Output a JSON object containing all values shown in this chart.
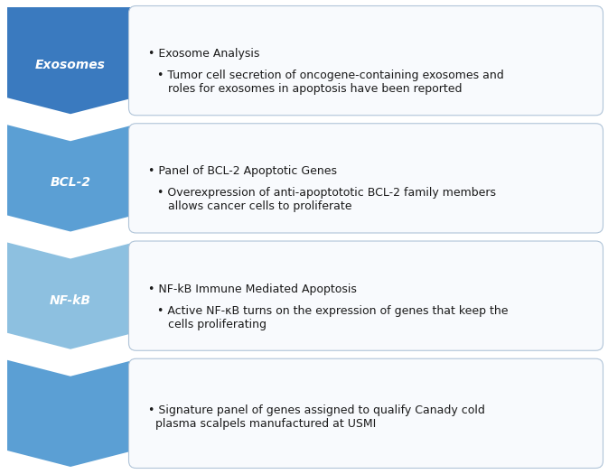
{
  "rows": [
    {
      "label": "Exosomes",
      "color_top": "#2E5F8A",
      "color_main": "#3A7ABF",
      "bullet1": "• Exosome Analysis",
      "bullet2": "• Tumor cell secretion of oncogene-containing exosomes and\n   roles for exosomes in apoptosis have been reported"
    },
    {
      "label": "BCL-2",
      "color_top": "#4A86BF",
      "color_main": "#5B9FD4",
      "bullet1": "• Panel of BCL-2 Apoptotic Genes",
      "bullet2": "• Overexpression of anti-apoptototic BCL-2 family members\n   allows cancer cells to proliferate"
    },
    {
      "label": "NF-kB",
      "color_top": "#7BAFD4",
      "color_main": "#8DC0E0",
      "bullet1": "• NF-kB Immune Mediated Apoptosis",
      "bullet2": "• Active NF-κB turns on the expression of genes that keep the\n   cells proliferating"
    },
    {
      "label": "",
      "color_top": "#4A86BF",
      "color_main": "#5B9FD4",
      "bullet1": "• Signature panel of genes assigned to qualify Canady cold\n  plasma scalpels manufactured at USMI",
      "bullet2": ""
    }
  ],
  "background_color": "#ffffff",
  "box_facecolor": "#f8fafd",
  "box_edgecolor": "#b0c4d8",
  "text_color": "#1a1a1a",
  "label_text_color": "#ffffff",
  "label_fontsize": 10,
  "bullet_fontsize": 9,
  "fig_width": 6.73,
  "fig_height": 5.25,
  "dpi": 100
}
